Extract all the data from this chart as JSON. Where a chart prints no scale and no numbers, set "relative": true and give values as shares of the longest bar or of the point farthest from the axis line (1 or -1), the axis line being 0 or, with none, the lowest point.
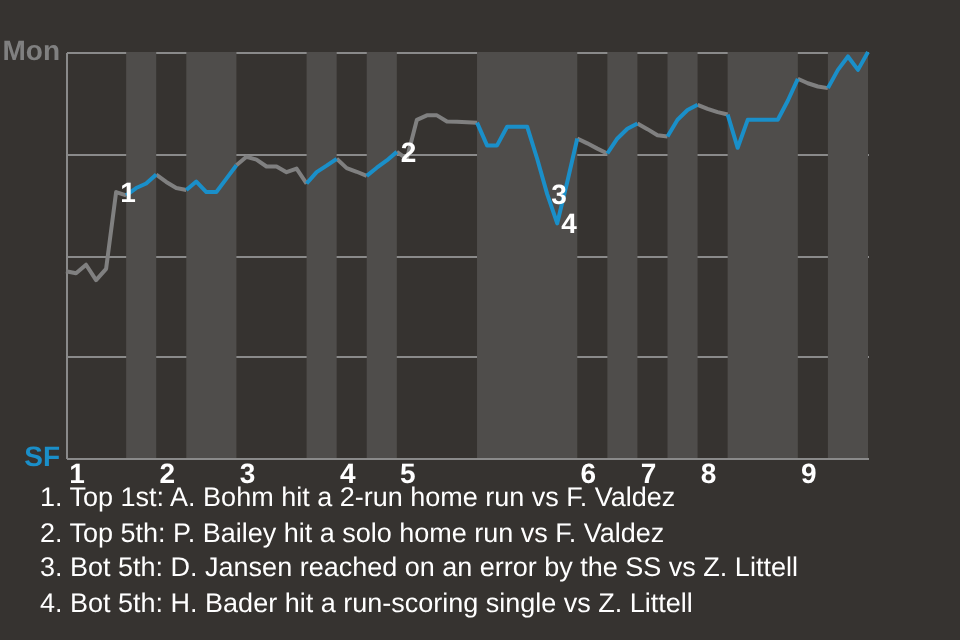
{
  "chart_data": {
    "type": "line",
    "relative": true,
    "categories": [
      null,
      "1",
      null,
      null,
      null,
      null,
      null,
      null,
      null,
      null,
      "2",
      null,
      null,
      null,
      null,
      null,
      null,
      null,
      "3",
      null,
      null,
      null,
      null,
      null,
      null,
      null,
      null,
      null,
      "4",
      null,
      null,
      null,
      null,
      null,
      "5",
      null,
      null,
      null,
      null,
      null,
      null,
      null,
      null,
      null,
      null,
      null,
      null,
      null,
      null,
      null,
      null,
      null,
      "6",
      null,
      null,
      null,
      null,
      null,
      "7",
      null,
      null,
      null,
      null,
      null,
      "8",
      null,
      null,
      null,
      null,
      null,
      null,
      null,
      null,
      null,
      "9",
      null,
      null,
      null,
      null,
      null,
      null
    ],
    "series": [
      {
        "name": "Mon",
        "color": "#808080",
        "values": [
          0.46,
          0.455,
          0.476,
          0.438,
          0.466,
          0.655,
          0.647,
          null,
          null,
          0.698,
          0.68,
          0.665,
          0.66,
          null,
          null,
          null,
          null,
          0.721,
          0.742,
          0.735,
          0.718,
          0.718,
          0.704,
          0.713,
          0.676,
          null,
          null,
          0.737,
          0.714,
          0.705,
          0.695,
          null,
          null,
          0.754,
          0.737,
          0.833,
          0.844,
          0.844,
          0.829,
          0.828,
          0.827,
          0.826,
          null,
          null,
          null,
          null,
          null,
          null,
          null,
          null,
          null,
          0.787,
          0.775,
          0.762,
          0.75,
          null,
          null,
          0.824,
          0.81,
          0.795,
          0.792,
          null,
          null,
          0.87,
          0.86,
          0.852,
          0.846,
          null,
          null,
          null,
          null,
          null,
          null,
          0.934,
          0.923,
          0.915,
          0.911,
          null,
          null,
          null,
          null
        ]
      },
      {
        "name": "SF",
        "color": "#1a8fc9",
        "values": [
          null,
          null,
          null,
          null,
          null,
          null,
          0.647,
          0.665,
          0.676,
          0.698,
          null,
          null,
          0.66,
          0.681,
          0.655,
          0.655,
          0.688,
          0.721,
          null,
          null,
          null,
          null,
          null,
          null,
          0.676,
          0.704,
          0.72,
          0.737,
          null,
          null,
          0.695,
          0.715,
          0.733,
          0.754,
          null,
          null,
          null,
          null,
          null,
          null,
          null,
          0.826,
          0.77,
          0.77,
          0.816,
          0.816,
          0.816,
          0.737,
          0.65,
          0.578,
          0.68,
          0.787,
          null,
          null,
          0.75,
          0.787,
          0.811,
          0.824,
          null,
          null,
          0.792,
          0.833,
          0.857,
          0.87,
          null,
          null,
          0.846,
          0.764,
          0.833,
          0.833,
          0.833,
          0.833,
          0.88,
          0.934,
          null,
          null,
          0.911,
          0.956,
          0.989,
          0.956,
          1.0
        ]
      }
    ],
    "grid": "y",
    "annotations": [
      {
        "text": "1",
        "y": 0.655
      },
      {
        "text": "2",
        "y": 0.754
      },
      {
        "text": "3",
        "y": 0.65
      },
      {
        "text": "4",
        "y": 0.578
      },
      "1. Top 1st: A. Bohm hit a 2-run home run vs F. Valdez",
      "2. Top 5th: P. Bailey hit a solo home run vs F. Valdez",
      "3. Bot 5th: D. Jansen reached on an error by the SS vs Z. Littell",
      "4. Bot 5th: H. Bader hit a run-scoring single vs Z. Littell"
    ]
  }
}
